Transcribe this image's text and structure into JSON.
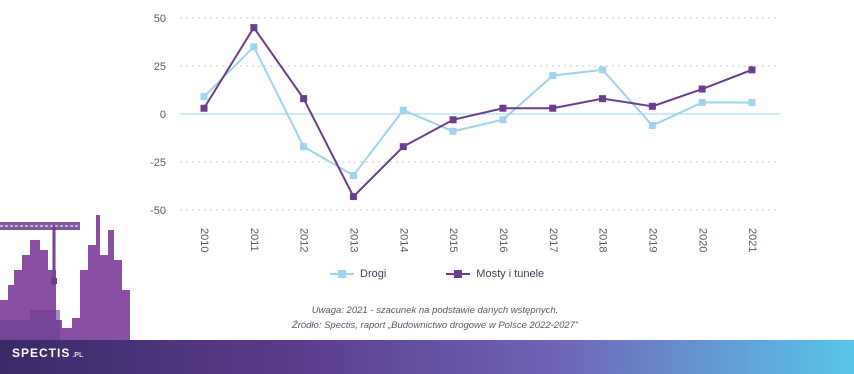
{
  "chart_data": {
    "type": "line",
    "categories": [
      "2010",
      "2011",
      "2012",
      "2013",
      "2014",
      "2015",
      "2016",
      "2017",
      "2018",
      "2019",
      "2020",
      "2021"
    ],
    "series": [
      {
        "name": "Drogi",
        "color": "#9fd3ee",
        "values": [
          9,
          35,
          -17,
          -32,
          2,
          -9,
          -3,
          20,
          23,
          -6,
          6,
          6
        ]
      },
      {
        "name": "Mosty i tunele",
        "color": "#6b3d8f",
        "values": [
          3,
          45,
          8,
          -43,
          -17,
          -3,
          3,
          3,
          8,
          4,
          13,
          23
        ]
      }
    ],
    "yticks": [
      50,
      25,
      0,
      -25,
      -50
    ],
    "ylim": [
      -50,
      50
    ],
    "grid": "dashed horizontal",
    "legend_position": "bottom"
  },
  "legend": {
    "drogi": "Drogi",
    "mosty": "Mosty i tunele"
  },
  "notes": {
    "line1": "Uwaga: 2021 - szacunek na podstawie danych wstępnych.",
    "line2": "Źródło: Spectis, raport „Budownictwo drogowe w Polsce 2022-2027”"
  },
  "logo": {
    "text": "SPECTIS",
    "suffix": ".PL"
  }
}
